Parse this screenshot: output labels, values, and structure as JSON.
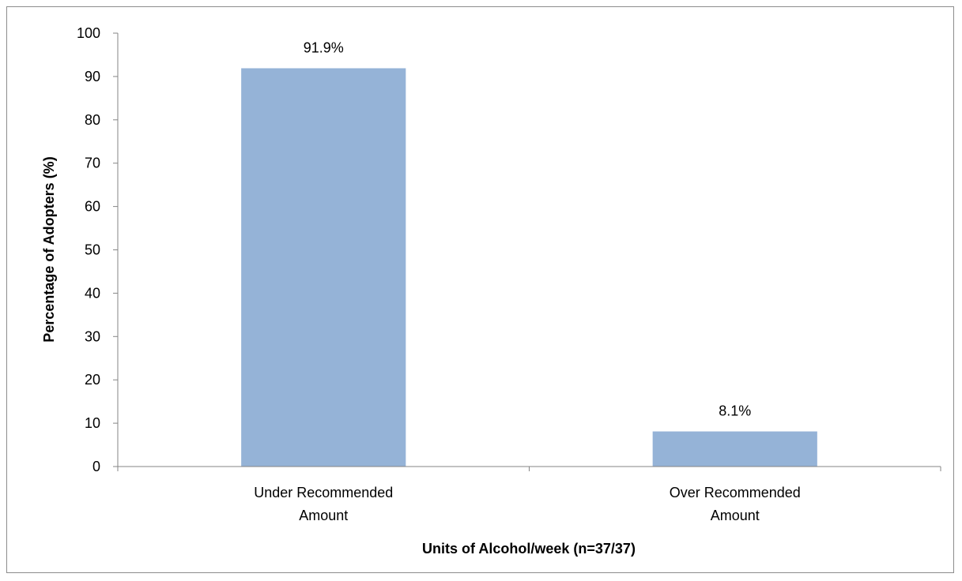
{
  "chart_data": {
    "type": "bar",
    "categories": [
      [
        "Under Recommended",
        "Amount"
      ],
      [
        "Over Recommended",
        "Amount"
      ]
    ],
    "values": [
      91.9,
      8.1
    ],
    "data_labels": [
      "91.9%",
      "8.1%"
    ],
    "title": "",
    "xlabel": "Units of Alcohol/week (n=37/37)",
    "ylabel": "Percentage of Adopters (%)",
    "ylim": [
      0,
      100
    ],
    "yticks": [
      "0",
      "10",
      "20",
      "30",
      "40",
      "50",
      "60",
      "70",
      "80",
      "90",
      "100"
    ],
    "bar_color": "#95b3d7",
    "axis_color": "#868686",
    "grid": false,
    "legend": "none"
  }
}
